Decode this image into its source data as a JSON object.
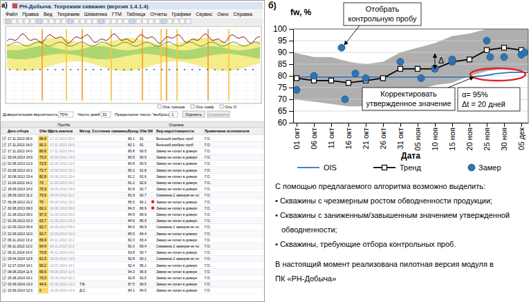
{
  "chart_data": {
    "type": "line",
    "label": "б)",
    "y_label": "fw, %",
    "x_label": "Дата",
    "xlim": [
      -1,
      67
    ],
    "xticks": [
      {
        "value": 0,
        "label": "01 окт"
      },
      {
        "value": 5,
        "label": "06 окт"
      },
      {
        "value": 10,
        "label": "11 окт"
      },
      {
        "value": 15,
        "label": "16 окт"
      },
      {
        "value": 20,
        "label": "21 окт"
      },
      {
        "value": 25,
        "label": "26 окт"
      },
      {
        "value": 30,
        "label": "31 окт"
      },
      {
        "value": 35,
        "label": "05 ноя"
      },
      {
        "value": 40,
        "label": "10 ноя"
      },
      {
        "value": 45,
        "label": "15 ноя"
      },
      {
        "value": 50,
        "label": "20 ноя"
      },
      {
        "value": 55,
        "label": "25 ноя"
      },
      {
        "value": 60,
        "label": "30 ноя"
      },
      {
        "value": 65,
        "label": "05 дек"
      }
    ],
    "ylim": [
      60,
      100
    ],
    "yticks": [
      60,
      65,
      70,
      75,
      80,
      85,
      90,
      95,
      100
    ],
    "grid": true,
    "confidence_band": {
      "color": "#a6a6a6",
      "x": [
        -1,
        5,
        10,
        15,
        20,
        25,
        30,
        35,
        40,
        45,
        50,
        55,
        60,
        67
      ],
      "upper": [
        90,
        88,
        88,
        86,
        85,
        86,
        90,
        92,
        94,
        97,
        98,
        100,
        100,
        100
      ],
      "lower": [
        70,
        69,
        68,
        67,
        67,
        70,
        73,
        74,
        76,
        77,
        80,
        82,
        83,
        82
      ]
    },
    "series": [
      {
        "name": "OIS",
        "type": "line",
        "color": "#2e75b6",
        "x": [
          -1,
          50,
          54,
          58,
          62,
          67
        ],
        "values": [
          79.5,
          79.5,
          80,
          81,
          81.5,
          81.5
        ]
      },
      {
        "name": "Тренд",
        "type": "line",
        "marker": "square",
        "color": "#000000",
        "x": [
          0,
          5,
          10,
          15,
          20,
          25,
          30,
          35,
          40,
          45,
          50,
          55,
          60,
          65
        ],
        "values": [
          79,
          78,
          78,
          77,
          78,
          79,
          83,
          83,
          83,
          86,
          87,
          91,
          92,
          91
        ]
      },
      {
        "name": "Замер",
        "type": "scatter",
        "marker": "circle",
        "color": "#2e75b6",
        "x": [
          0,
          5,
          13,
          14,
          17,
          20,
          30,
          36,
          40,
          45,
          45,
          55,
          56,
          60,
          65,
          66
        ],
        "values": [
          74,
          80,
          92,
          70,
          81,
          79,
          86,
          79,
          83,
          86,
          87,
          95,
          88,
          88,
          89,
          90
        ]
      }
    ],
    "annotations": [
      {
        "text": [
          "Отобрать",
          "контрольную пробу"
        ]
      },
      {
        "text": [
          "Корректировать",
          "утвержденное значение"
        ]
      },
      {
        "text": [
          "α= 95%",
          "Δt = 20 дней"
        ]
      },
      {
        "text": [
          "Δ"
        ]
      }
    ]
  },
  "notes": {
    "intro": "С помощью предлагаемого алгоритма возможно выделить:",
    "bullets": [
      [
        "• Скважины с чрезмерным ростом обводненности продукции;"
      ],
      [
        "• Скважины с заниженным/завышенным значением утвержденной",
        "обводненности;"
      ],
      [
        "• Скважины, требующие отбора контрольных проб."
      ]
    ],
    "footer": [
      "В настоящий момент реализована пилотная версия модуля в",
      "ПК «РН-Добыча»"
    ]
  },
  "screenshot": {
    "label": "а)",
    "title": "РН-Добыча. Техрежим скважин (версия 1.4.1.4)",
    "menu": [
      "Файл",
      "Правка",
      "Вид",
      "Техрежим",
      "Шематика",
      "ГТМ",
      "Таблица",
      "Отчеты",
      "Графики",
      "Сервис",
      "Окно",
      "Справка"
    ],
    "plot_checkboxes": [
      "Ось тренда",
      "Ось граф",
      "Ось О"
    ],
    "controls": {
      "confidence_label": "Доверительная вероятность",
      "confidence": "75%",
      "days_label": "Число дней",
      "days": "31",
      "outliers_label": "Предельное число \"выбросов\"",
      "outliers": "1",
      "buttons": [
        "Оценить",
        "Сохранить"
      ]
    },
    "table": {
      "group_headers": [
        "Проба",
        "Оценка"
      ],
      "headers": [
        "Дата отбора",
        "Обв Ф",
        "Дата анализа",
        "Метод",
        "Состояние скважины",
        "Тренд",
        "Обв ОИ",
        "Вид недостоверности",
        "Примечание исполнителя"
      ],
      "alert_rows": [
        10,
        11
      ],
      "rows": [
        [
          "17.11.2013 09:0",
          "88.8",
          "17.11.2013 09:0",
          null,
          null,
          "80.1",
          "91",
          "Большой разброс проб",
          "Г.О."
        ],
        [
          "17.11.2013 14:0",
          "82.1",
          "17.11.2013 14:0",
          null,
          null,
          "82.1",
          "91",
          "Большой разброс проб",
          "Г.О."
        ],
        [
          "17.11.2013 14:0",
          "80.8",
          "17.11.2013 14:0",
          null,
          null,
          "80.8",
          "90.5",
          "Замер не попал в довери",
          "Г.О."
        ],
        [
          "30.04.2013 14:0",
          "75.0",
          "30.04.2013 14:0",
          null,
          null,
          "80.5",
          "90.5",
          "Замер не попал в довери",
          "Г.О."
        ],
        [
          "02.08.2013 12:0",
          "72.5",
          "02.08.2013 12:0",
          null,
          null,
          "80.8",
          "90.5",
          "Замер не попал в довери",
          "Г.О."
        ],
        [
          "23.08.2013 10:1",
          "73.7",
          "23.08.2013 10:1",
          null,
          null,
          "80.2",
          "91.8",
          "Замер не попал в довери",
          "Г.О."
        ],
        [
          "30.08.2013 15:4",
          "82.8",
          "30.08.2013 15:4",
          null,
          null,
          "81.2",
          "92.6",
          "Замер не попал в довери",
          "Г.О."
        ],
        [
          "11.09.2013 14:2",
          "73",
          "11.09.2013 14:2",
          null,
          null,
          "81.2",
          "92.6",
          "Замер не попал в довери",
          "Г.О."
        ],
        [
          "18.09.2013 14:0",
          "75.9",
          "18.09.2013 14:0",
          null,
          null,
          "81.8",
          "92.7",
          "Замер не попал в довери",
          "Г.О."
        ],
        [
          "28.09.2013 11:2",
          "79.5",
          "28.09.2013 11:2",
          null,
          null,
          "81.9",
          "92.7",
          "Скважина 2 замеров не по",
          "Г.О."
        ],
        [
          "06.08.2013 10:2",
          "75",
          "06.08.2013 10:2",
          null,
          null,
          "85.5",
          "90.1",
          "Замер не попал в довери",
          "Г.О."
        ],
        [
          "30.08.2013 09:0",
          "60.1",
          "30.08.2013 09:0",
          null,
          null,
          "84.3",
          "86.9",
          "Замер не попал в довери",
          "Г.О."
        ],
        [
          "31.08.2013 09:0",
          "97.3",
          "31.08.2013 09:0",
          null,
          null,
          "84.9",
          "86.9",
          "Замер не попал в довери",
          "Г.О."
        ],
        [
          "01.09.2013 03:3",
          "62.7",
          "01.09.2013 03:3",
          null,
          null,
          "84.6",
          "85.9",
          "Замер не попал в довери",
          "Г.О."
        ],
        [
          "02.09.2013 05:4",
          "62.7",
          "02.09.2013 05:4",
          null,
          null,
          "84.0",
          "86.9",
          "Скважина 2 замеров не по",
          "Г.О."
        ],
        [
          "22.09.2013 10:0",
          "62.7",
          "22.09.2013 10:0",
          null,
          null,
          "85.5",
          "84.4",
          "Замер не попал в довери",
          "Г.О."
        ],
        [
          "05.11.2013 13:2",
          "65.9",
          "05.11.2013 13:2",
          null,
          null,
          "82.3",
          "83.4",
          "Замер не попал в довери",
          "Г.О."
        ],
        [
          "06.11.2013 13:2",
          "64.9",
          "06.11.2013 13:2",
          null,
          null,
          "82.3",
          "83.4",
          "Скважина 2 замеров не по",
          "Г.О."
        ],
        [
          "06.11.2014 14:0",
          "70.8",
          "06.11.2014 14:0",
          null,
          null,
          "93.8",
          "93.7",
          "Замер не попал в довери",
          "Г.О."
        ],
        [
          "29.04.2014 13:5",
          "61.5",
          "29.04.2014 13:5",
          null,
          null,
          "92.8",
          "93.1",
          "Скважина 2 замеров не по",
          "Г.О."
        ],
        [
          "12.07.2014 14:1",
          "60.2",
          "12.07.2014 14:1",
          null,
          null,
          "92.4",
          "95.1",
          "Замер не попал в довери",
          "Г.О."
        ],
        [
          "08.08.2014 11:5",
          "69.5",
          "08.08.2014 11:5",
          null,
          null,
          "94.3",
          "95.9",
          "Замер не попал в довери",
          "Г.О."
        ],
        [
          "25.08.2014 03:1",
          "70.0",
          "25.08.2014 03:1",
          null,
          null,
          "92.8",
          "92.5",
          "Замер не попал в довери",
          "Г.О."
        ],
        [
          "03.09.2014 13:3",
          "44.4",
          "03.09.2014 13:3",
          "Т.В.",
          null,
          "87.5",
          "90.5",
          "Замер не попал в довери",
          "Г.О."
        ],
        [
          "23.09.2014 12:0",
          "0",
          "23.09.2014 12:0",
          "Д.С.",
          null,
          "84.1",
          "84.5",
          "Замер не попал в довери",
          "Г.О."
        ]
      ]
    }
  }
}
